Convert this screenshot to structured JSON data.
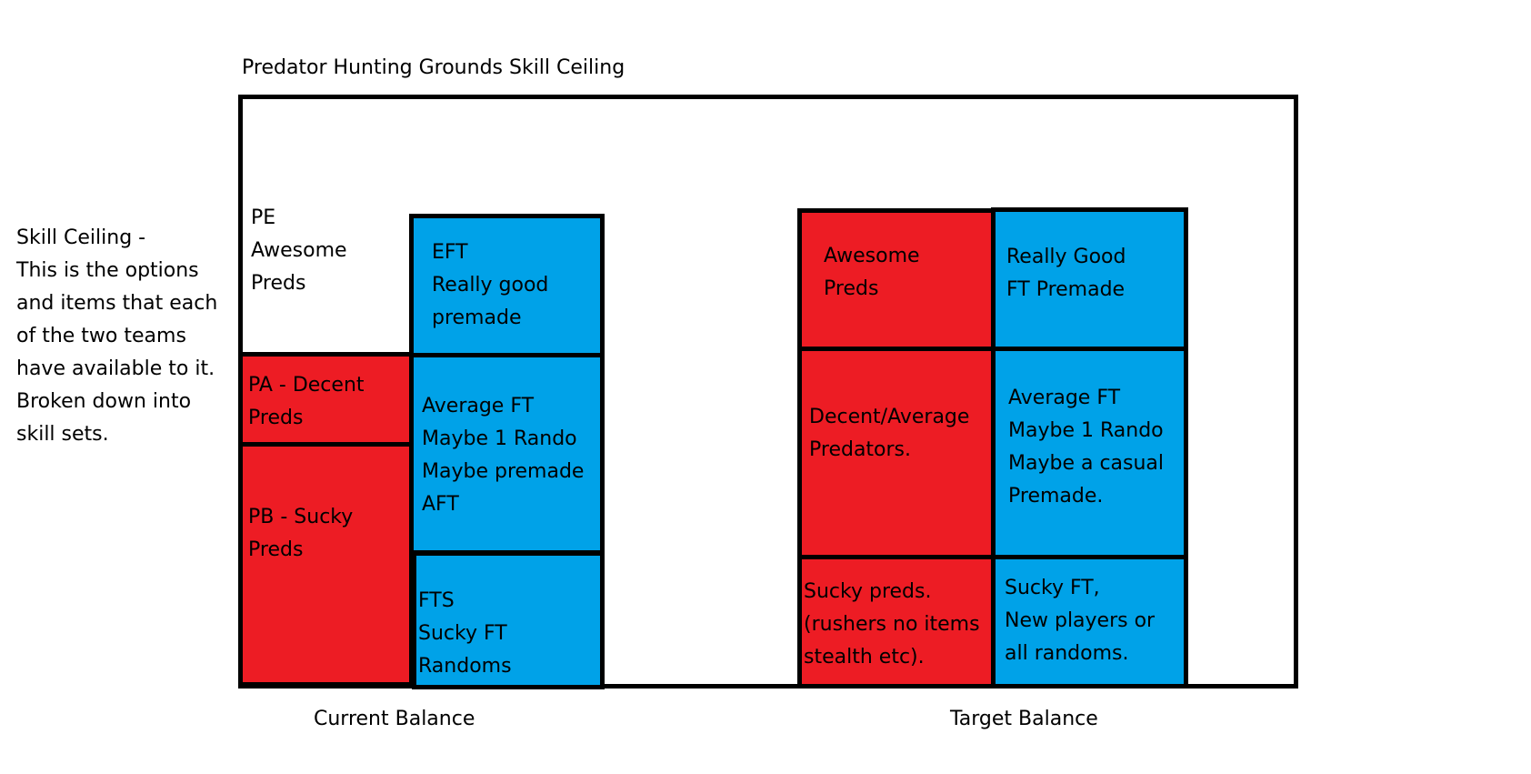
{
  "title": "Predator Hunting Grounds Skill Ceiling",
  "side_note": "Skill Ceiling -\nThis is the options\nand items that each\nof the two teams\nhave available to it.\nBroken down into\nskill sets.",
  "colors": {
    "predator": "#ED1C24",
    "fireteam": "#00A2E8"
  },
  "current": {
    "label": "Current Balance",
    "pe": "PE\nAwesome\nPreds",
    "pa": "PA - Decent\nPreds",
    "pb": "PB - Sucky\nPreds",
    "eft": "EFT\nReally good\npremade",
    "aft": "Average FT\nMaybe 1 Rando\nMaybe premade\nAFT",
    "fts": "FTS\nSucky FT\nRandoms"
  },
  "target": {
    "label": "Target Balance",
    "pred_top": "Awesome\nPreds",
    "pred_mid": "Decent/Average\nPredators.",
    "pred_low": "Sucky preds.\n(rushers no items\nstealth etc).",
    "ft_top": "Really Good\nFT Premade",
    "ft_mid": "Average FT\nMaybe 1 Rando\nMaybe a casual\nPremade.",
    "ft_low": "Sucky FT,\nNew players or\nall randoms."
  }
}
